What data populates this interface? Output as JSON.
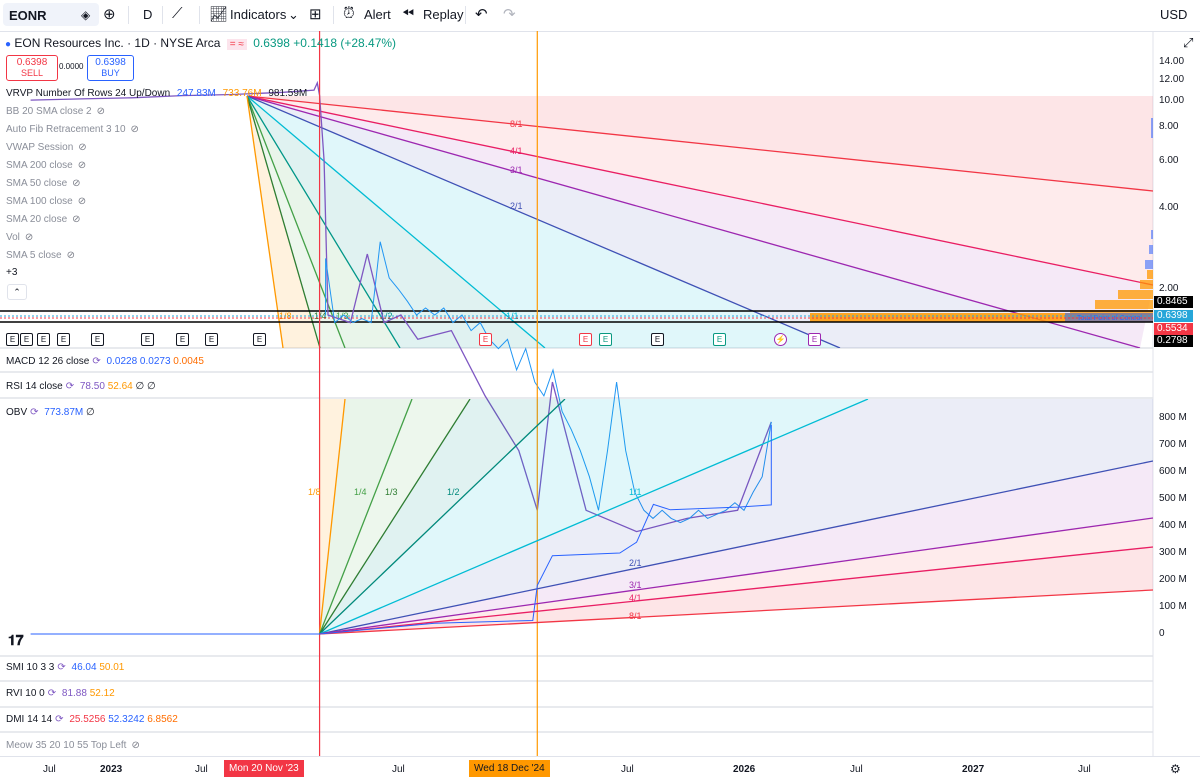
{
  "toolbar": {
    "symbol": "EONR",
    "interval": "D",
    "indicators_label": "Indicators",
    "alert_label": "Alert",
    "replay_label": "Replay"
  },
  "legend": {
    "title": "EON Resources Inc. · 1D · NYSE Arca",
    "last": "0.6398",
    "change": "+0.1418 (+28.47%)",
    "sell_price": "0.6398",
    "sell_label": "SELL",
    "spread": "0.0000",
    "buy_price": "0.6398",
    "buy_label": "BUY",
    "currency": "USD"
  },
  "indicators": [
    {
      "name": "VRVP Number Of Rows 24 Up/Down",
      "v1": "247.83M",
      "v2": "733.76M",
      "v3": "981.59M"
    },
    {
      "name": "BB 20 SMA close 2"
    },
    {
      "name": "Auto Fib Retracement 3 10"
    },
    {
      "name": "VWAP Session"
    },
    {
      "name": "SMA 200 close"
    },
    {
      "name": "SMA 50 close"
    },
    {
      "name": "SMA 100 close"
    },
    {
      "name": "SMA 20 close"
    },
    {
      "name": "Vol"
    },
    {
      "name": "SMA 5 close"
    }
  ],
  "more_indicators": "+3",
  "panes": {
    "macd": {
      "label": "MACD 12 26 close",
      "v1": "0.0228",
      "v2": "0.0273",
      "v3": "0.0045"
    },
    "rsi": {
      "label": "RSI 14 close",
      "v1": "78.50",
      "v2": "52.64",
      "v3": "∅ ∅"
    },
    "obv": {
      "label": "OBV",
      "v1": "773.87M",
      "v2": "∅"
    },
    "smi": {
      "label": "SMI 10 3 3",
      "v1": "46.04",
      "v2": "50.01"
    },
    "rvi": {
      "label": "RVI 10 0",
      "v1": "81.88",
      "v2": "52.12"
    },
    "dmi": {
      "label": "DMI 14 14",
      "v1": "25.5256",
      "v2": "52.3242",
      "v3": "6.8562"
    },
    "meow": {
      "label": "Meow 35 20 10 55 Top Left"
    }
  },
  "price_axis": [
    "14.00",
    "12.00",
    "10.00",
    "8.00",
    "6.00",
    "4.00",
    "2.00"
  ],
  "price_tags": [
    {
      "value": "0.8465",
      "color": "#000000"
    },
    {
      "value": "0.6398",
      "color": "#26a6d9"
    },
    {
      "value": "0.5534",
      "color": "#f23645"
    },
    {
      "value": "0.2798",
      "color": "#000000"
    }
  ],
  "obv_axis": [
    "800 M",
    "700 M",
    "600 M",
    "500 M",
    "400 M",
    "300 M",
    "200 M",
    "100 M",
    "0"
  ],
  "time_axis": {
    "labels": [
      "Jul",
      "2023",
      "Jul",
      "Jul",
      "Jul",
      "2026",
      "Jul",
      "2027",
      "Jul"
    ],
    "cursor1": "Mon 20 Nov '23",
    "cursor2": "Wed 18 Dec '24"
  },
  "gann_labels_price": [
    "8/1",
    "4/1",
    "3/1",
    "2/1",
    "1/8",
    "1/4",
    "1/3",
    "1/2",
    "1/1"
  ],
  "gann_labels_obv": [
    "1/8",
    "1/4",
    "1/3",
    "1/2",
    "1/1",
    "2/1",
    "3/1",
    "4/1",
    "8/1"
  ],
  "vp_label": "Total Point of Control",
  "colors": {
    "up": "#089981",
    "down": "#f23645",
    "purple": "#9c27b0",
    "blue": "#2962ff",
    "orange": "#ff9800"
  },
  "chart_data": [
    {
      "type": "line",
      "title": "EON Resources Inc. · 1D · NYSE Arca",
      "series": [
        {
          "name": "EONR",
          "points": [
            [
              "2022-06",
              10.1
            ],
            [
              "2022-09",
              10.2
            ],
            [
              "2022-12",
              10.3
            ],
            [
              "2023-03",
              10.5
            ],
            [
              "2023-06",
              10.6
            ],
            [
              "2023-09",
              10.8
            ],
            [
              "2023-11-10",
              11.0
            ],
            [
              "2023-11-16",
              11.7
            ],
            [
              "2023-11-20",
              10.5
            ],
            [
              "2023-11-28",
              6.0
            ],
            [
              "2023-12-05",
              1.6
            ],
            [
              "2024-01",
              1.5
            ],
            [
              "2024-02",
              2.7
            ],
            [
              "2024-03",
              1.5
            ],
            [
              "2024-04",
              1.6
            ],
            [
              "2024-05",
              1.3
            ],
            [
              "2024-07",
              1.4
            ],
            [
              "2024-09",
              0.8
            ],
            [
              "2024-11",
              0.5
            ],
            [
              "2024-12-18",
              0.3
            ],
            [
              "2025-01",
              0.9
            ],
            [
              "2025-03",
              0.3
            ],
            [
              "2025-06",
              0.25
            ],
            [
              "2025-09",
              0.28
            ],
            [
              "2025-12",
              0.3
            ],
            [
              "2026-02",
              0.64
            ]
          ]
        }
      ],
      "ylim": [
        0,
        14
      ]
    },
    {
      "type": "line",
      "title": "OBV",
      "series": [
        {
          "name": "OBV",
          "points": [
            [
              "2022-06",
              0
            ],
            [
              "2023-11-20",
              0
            ],
            [
              "2024-06",
              40
            ],
            [
              "2024-12-10",
              50
            ],
            [
              "2024-12-18",
              180
            ],
            [
              "2025-01",
              290
            ],
            [
              "2025-05",
              300
            ],
            [
              "2025-06",
              340
            ],
            [
              "2025-07",
              480
            ],
            [
              "2025-08",
              460
            ],
            [
              "2025-12",
              470
            ],
            [
              "2026-02",
              478
            ],
            [
              "2026-02-15",
              774
            ]
          ]
        }
      ],
      "ylim": [
        0,
        800
      ]
    }
  ]
}
